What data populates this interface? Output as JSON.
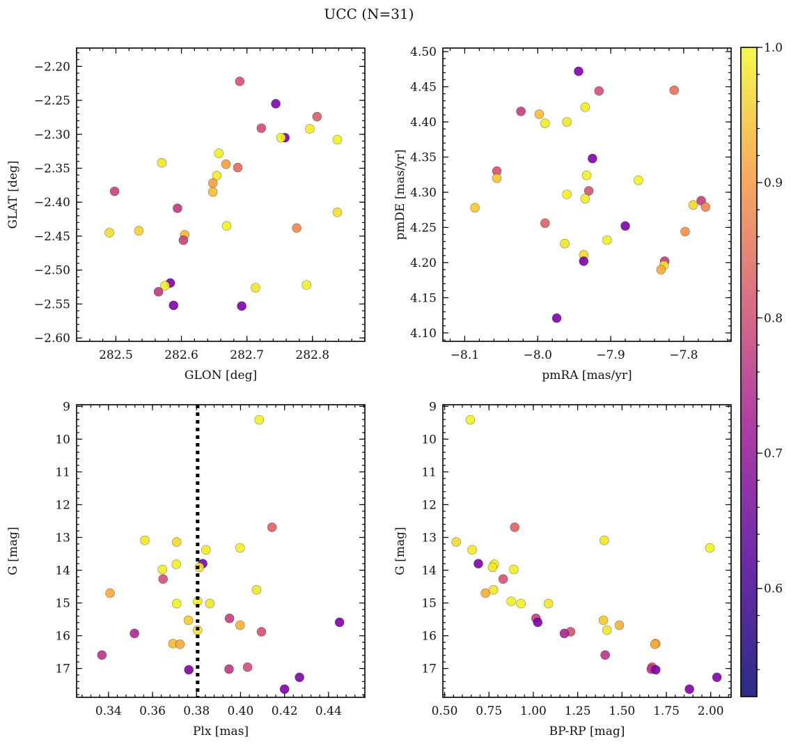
{
  "title": "UCC (N=31)",
  "colormap": {
    "name": "plasma",
    "min": 0.52,
    "max": 1.0,
    "ticks": [
      0.6,
      0.7,
      0.8,
      0.9,
      1.0
    ],
    "tick_labels": [
      "0.6",
      "0.7",
      "0.8",
      "0.9",
      "1.0"
    ]
  },
  "chart_data": [
    {
      "type": "scatter",
      "xlabel": "GLON [deg]",
      "ylabel": "GLAT [deg]",
      "xlim": [
        282.44,
        282.88
      ],
      "ylim": [
        -2.605,
        -2.173
      ],
      "y_inverted": false,
      "xticks": [
        282.5,
        282.6,
        282.7,
        282.8
      ],
      "xtick_labels": [
        "282.5",
        "282.6",
        "282.7",
        "282.8"
      ],
      "yticks": [
        -2.6,
        -2.55,
        -2.5,
        -2.45,
        -2.4,
        -2.35,
        -2.3,
        -2.25,
        -2.2
      ],
      "ytick_labels": [
        "−2.60",
        "−2.55",
        "−2.50",
        "−2.45",
        "−2.40",
        "−2.35",
        "−2.30",
        "−2.25",
        "−2.20"
      ],
      "points": [
        {
          "x": 282.689,
          "y": -2.222,
          "c": 0.72
        },
        {
          "x": 282.744,
          "y": -2.255,
          "c": 0.55
        },
        {
          "x": 282.807,
          "y": -2.274,
          "c": 0.74
        },
        {
          "x": 282.722,
          "y": -2.291,
          "c": 0.71
        },
        {
          "x": 282.796,
          "y": -2.292,
          "c": 0.98
        },
        {
          "x": 282.758,
          "y": -2.305,
          "c": 0.55
        },
        {
          "x": 282.752,
          "y": -2.305,
          "c": 0.99
        },
        {
          "x": 282.838,
          "y": -2.308,
          "c": 0.99
        },
        {
          "x": 282.657,
          "y": -2.328,
          "c": 0.99
        },
        {
          "x": 282.57,
          "y": -2.342,
          "c": 0.97
        },
        {
          "x": 282.668,
          "y": -2.344,
          "c": 0.86
        },
        {
          "x": 282.686,
          "y": -2.349,
          "c": 0.77
        },
        {
          "x": 282.654,
          "y": -2.361,
          "c": 0.98
        },
        {
          "x": 282.648,
          "y": -2.372,
          "c": 0.86
        },
        {
          "x": 282.498,
          "y": -2.384,
          "c": 0.69
        },
        {
          "x": 282.648,
          "y": -2.385,
          "c": 0.91
        },
        {
          "x": 282.594,
          "y": -2.409,
          "c": 0.67
        },
        {
          "x": 282.838,
          "y": -2.415,
          "c": 0.96
        },
        {
          "x": 282.669,
          "y": -2.435,
          "c": 0.99
        },
        {
          "x": 282.776,
          "y": -2.438,
          "c": 0.82
        },
        {
          "x": 282.535,
          "y": -2.442,
          "c": 0.94
        },
        {
          "x": 282.49,
          "y": -2.445,
          "c": 0.96
        },
        {
          "x": 282.605,
          "y": -2.448,
          "c": 0.9
        },
        {
          "x": 282.603,
          "y": -2.456,
          "c": 0.69
        },
        {
          "x": 282.583,
          "y": -2.519,
          "c": 0.55
        },
        {
          "x": 282.575,
          "y": -2.523,
          "c": 0.98
        },
        {
          "x": 282.791,
          "y": -2.522,
          "c": 0.99
        },
        {
          "x": 282.713,
          "y": -2.526,
          "c": 0.97
        },
        {
          "x": 282.565,
          "y": -2.532,
          "c": 0.67
        },
        {
          "x": 282.588,
          "y": -2.552,
          "c": 0.55
        },
        {
          "x": 282.692,
          "y": -2.553,
          "c": 0.55
        }
      ]
    },
    {
      "type": "scatter",
      "xlabel": "pmRA [mas/yr]",
      "ylabel": "pmDE [mas/yr]",
      "xlim": [
        -8.13,
        -7.735
      ],
      "ylim": [
        4.088,
        4.505
      ],
      "y_inverted": false,
      "xticks": [
        -8.1,
        -8.0,
        -7.9,
        -7.8
      ],
      "xtick_labels": [
        "−8.1",
        "−8.0",
        "−7.9",
        "−7.8"
      ],
      "yticks": [
        4.1,
        4.15,
        4.2,
        4.25,
        4.3,
        4.35,
        4.4,
        4.45,
        4.5
      ],
      "ytick_labels": [
        "4.10",
        "4.15",
        "4.20",
        "4.25",
        "4.30",
        "4.35",
        "4.40",
        "4.45",
        "4.50"
      ],
      "points": [
        {
          "x": -7.944,
          "y": 4.472,
          "c": 0.55
        },
        {
          "x": -7.813,
          "y": 4.445,
          "c": 0.78
        },
        {
          "x": -7.916,
          "y": 4.444,
          "c": 0.72
        },
        {
          "x": -7.935,
          "y": 4.421,
          "c": 0.98
        },
        {
          "x": -8.023,
          "y": 4.415,
          "c": 0.68
        },
        {
          "x": -7.998,
          "y": 4.411,
          "c": 0.91
        },
        {
          "x": -7.99,
          "y": 4.398,
          "c": 0.98
        },
        {
          "x": -7.96,
          "y": 4.4,
          "c": 0.97
        },
        {
          "x": -7.925,
          "y": 4.348,
          "c": 0.55
        },
        {
          "x": -8.056,
          "y": 4.33,
          "c": 0.72
        },
        {
          "x": -7.933,
          "y": 4.324,
          "c": 0.99
        },
        {
          "x": -8.056,
          "y": 4.32,
          "c": 0.92
        },
        {
          "x": -7.862,
          "y": 4.317,
          "c": 0.99
        },
        {
          "x": -7.93,
          "y": 4.302,
          "c": 0.73
        },
        {
          "x": -7.96,
          "y": 4.297,
          "c": 0.99
        },
        {
          "x": -7.935,
          "y": 4.291,
          "c": 0.98
        },
        {
          "x": -7.776,
          "y": 4.288,
          "c": 0.68
        },
        {
          "x": -7.787,
          "y": 4.282,
          "c": 0.95
        },
        {
          "x": -8.086,
          "y": 4.278,
          "c": 0.93
        },
        {
          "x": -7.77,
          "y": 4.279,
          "c": 0.82
        },
        {
          "x": -7.99,
          "y": 4.256,
          "c": 0.75
        },
        {
          "x": -7.88,
          "y": 4.252,
          "c": 0.55
        },
        {
          "x": -7.798,
          "y": 4.244,
          "c": 0.84
        },
        {
          "x": -7.905,
          "y": 4.232,
          "c": 0.98
        },
        {
          "x": -7.963,
          "y": 4.227,
          "c": 0.97
        },
        {
          "x": -7.937,
          "y": 4.211,
          "c": 0.95
        },
        {
          "x": -7.937,
          "y": 4.202,
          "c": 0.55
        },
        {
          "x": -7.826,
          "y": 4.202,
          "c": 0.68
        },
        {
          "x": -7.827,
          "y": 4.196,
          "c": 0.98
        },
        {
          "x": -7.831,
          "y": 4.19,
          "c": 0.88
        },
        {
          "x": -7.974,
          "y": 4.121,
          "c": 0.55
        }
      ]
    },
    {
      "type": "scatter",
      "xlabel": "Plx [mas]",
      "ylabel": "G [mag]",
      "xlim": [
        0.3255,
        0.4565
      ],
      "ylim": [
        8.95,
        17.88
      ],
      "y_inverted": true,
      "xticks": [
        0.34,
        0.36,
        0.38,
        0.4,
        0.42,
        0.44
      ],
      "xtick_labels": [
        "0.34",
        "0.36",
        "0.38",
        "0.40",
        "0.42",
        "0.44"
      ],
      "yticks": [
        9,
        10,
        11,
        12,
        13,
        14,
        15,
        16,
        17
      ],
      "ytick_labels": [
        "9",
        "10",
        "11",
        "12",
        "13",
        "14",
        "15",
        "16",
        "17"
      ],
      "vline": {
        "x": 0.3805
      },
      "points": [
        {
          "x": 0.4085,
          "y": 9.41,
          "c": 0.99
        },
        {
          "x": 0.4143,
          "y": 12.69,
          "c": 0.75
        },
        {
          "x": 0.3565,
          "y": 13.09,
          "c": 0.97
        },
        {
          "x": 0.371,
          "y": 13.14,
          "c": 0.95
        },
        {
          "x": 0.3998,
          "y": 13.32,
          "c": 0.99
        },
        {
          "x": 0.3843,
          "y": 13.38,
          "c": 0.98
        },
        {
          "x": 0.3828,
          "y": 13.8,
          "c": 0.55
        },
        {
          "x": 0.3708,
          "y": 13.82,
          "c": 0.99
        },
        {
          "x": 0.3813,
          "y": 13.91,
          "c": 0.97
        },
        {
          "x": 0.3645,
          "y": 13.98,
          "c": 0.98
        },
        {
          "x": 0.3648,
          "y": 14.27,
          "c": 0.72
        },
        {
          "x": 0.3407,
          "y": 14.7,
          "c": 0.88
        },
        {
          "x": 0.4073,
          "y": 14.6,
          "c": 0.97
        },
        {
          "x": 0.3805,
          "y": 14.95,
          "c": 0.99
        },
        {
          "x": 0.371,
          "y": 15.02,
          "c": 0.99
        },
        {
          "x": 0.386,
          "y": 15.02,
          "c": 0.97
        },
        {
          "x": 0.395,
          "y": 15.47,
          "c": 0.68
        },
        {
          "x": 0.3763,
          "y": 15.53,
          "c": 0.93
        },
        {
          "x": 0.3998,
          "y": 15.68,
          "c": 0.89
        },
        {
          "x": 0.445,
          "y": 15.59,
          "c": 0.55
        },
        {
          "x": 0.3805,
          "y": 15.83,
          "c": 0.97
        },
        {
          "x": 0.4095,
          "y": 15.88,
          "c": 0.72
        },
        {
          "x": 0.3518,
          "y": 15.93,
          "c": 0.63
        },
        {
          "x": 0.3693,
          "y": 16.24,
          "c": 0.91
        },
        {
          "x": 0.3725,
          "y": 16.26,
          "c": 0.88
        },
        {
          "x": 0.337,
          "y": 16.59,
          "c": 0.66
        },
        {
          "x": 0.4032,
          "y": 16.96,
          "c": 0.72
        },
        {
          "x": 0.3948,
          "y": 17.02,
          "c": 0.67
        },
        {
          "x": 0.3765,
          "y": 17.04,
          "c": 0.55
        },
        {
          "x": 0.4268,
          "y": 17.27,
          "c": 0.55
        },
        {
          "x": 0.42,
          "y": 17.63,
          "c": 0.55
        }
      ]
    },
    {
      "type": "scatter",
      "xlabel": "BP-RP [mag]",
      "ylabel": "G [mag]",
      "xlim": [
        0.49,
        2.115
      ],
      "ylim": [
        8.95,
        17.88
      ],
      "y_inverted": true,
      "xticks": [
        0.5,
        0.75,
        1.0,
        1.25,
        1.5,
        1.75,
        2.0
      ],
      "xtick_labels": [
        "0.50",
        "0.75",
        "1.00",
        "1.25",
        "1.50",
        "1.75",
        "2.00"
      ],
      "yticks": [
        9,
        10,
        11,
        12,
        13,
        14,
        15,
        16,
        17
      ],
      "ytick_labels": [
        "9",
        "10",
        "11",
        "12",
        "13",
        "14",
        "15",
        "16",
        "17"
      ],
      "points": [
        {
          "x": 0.645,
          "y": 9.41,
          "c": 0.99
        },
        {
          "x": 0.895,
          "y": 12.69,
          "c": 0.75
        },
        {
          "x": 1.4,
          "y": 13.09,
          "c": 0.97
        },
        {
          "x": 0.565,
          "y": 13.14,
          "c": 0.95
        },
        {
          "x": 1.995,
          "y": 13.32,
          "c": 0.99
        },
        {
          "x": 0.655,
          "y": 13.38,
          "c": 0.98
        },
        {
          "x": 0.69,
          "y": 13.8,
          "c": 0.55
        },
        {
          "x": 0.78,
          "y": 13.82,
          "c": 0.99
        },
        {
          "x": 0.77,
          "y": 13.91,
          "c": 0.97
        },
        {
          "x": 0.89,
          "y": 13.98,
          "c": 0.98
        },
        {
          "x": 0.83,
          "y": 14.27,
          "c": 0.72
        },
        {
          "x": 0.73,
          "y": 14.7,
          "c": 0.88
        },
        {
          "x": 0.775,
          "y": 14.6,
          "c": 0.97
        },
        {
          "x": 0.875,
          "y": 14.95,
          "c": 0.99
        },
        {
          "x": 0.93,
          "y": 15.02,
          "c": 0.99
        },
        {
          "x": 1.085,
          "y": 15.02,
          "c": 0.97
        },
        {
          "x": 1.015,
          "y": 15.47,
          "c": 0.68
        },
        {
          "x": 1.395,
          "y": 15.53,
          "c": 0.93
        },
        {
          "x": 1.485,
          "y": 15.68,
          "c": 0.89
        },
        {
          "x": 1.025,
          "y": 15.59,
          "c": 0.55
        },
        {
          "x": 1.415,
          "y": 15.83,
          "c": 0.97
        },
        {
          "x": 1.21,
          "y": 15.88,
          "c": 0.72
        },
        {
          "x": 1.175,
          "y": 15.93,
          "c": 0.63
        },
        {
          "x": 1.69,
          "y": 16.24,
          "c": 0.91
        },
        {
          "x": 1.685,
          "y": 16.26,
          "c": 0.88
        },
        {
          "x": 1.405,
          "y": 16.59,
          "c": 0.66
        },
        {
          "x": 1.67,
          "y": 16.96,
          "c": 0.72
        },
        {
          "x": 1.665,
          "y": 17.02,
          "c": 0.67
        },
        {
          "x": 1.69,
          "y": 17.04,
          "c": 0.55
        },
        {
          "x": 2.035,
          "y": 17.27,
          "c": 0.55
        },
        {
          "x": 1.88,
          "y": 17.63,
          "c": 0.55
        }
      ]
    }
  ]
}
